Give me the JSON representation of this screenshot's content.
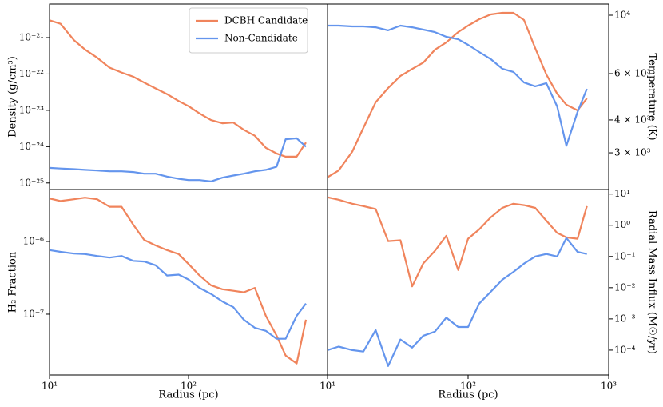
{
  "chart_data": [
    {
      "type": "line",
      "ylabel": "Density (g/cm³)",
      "xscale": "log",
      "yscale": "log",
      "yaxis": "left",
      "xlim": [
        10,
        1000
      ],
      "ylim": [
        6.6e-26,
        8.4e-21
      ],
      "yticks": [
        {
          "value": 1e-25,
          "label": "10⁻²⁵"
        },
        {
          "value": 1e-24,
          "label": "10⁻²⁴"
        },
        {
          "value": 1e-23,
          "label": "10⁻²³"
        },
        {
          "value": 1e-22,
          "label": "10⁻²²"
        },
        {
          "value": 1e-21,
          "label": "10⁻²¹"
        }
      ],
      "legend": "upper right",
      "x": [
        10,
        12,
        15,
        18,
        22,
        27,
        33,
        40,
        48,
        58,
        70,
        85,
        100,
        120,
        145,
        175,
        210,
        250,
        300,
        360,
        430,
        500,
        600,
        700
      ],
      "series": [
        {
          "name": "DCBH Candidate",
          "color": "#f0845c",
          "values": [
            3e-21,
            2.4e-21,
            8.5e-22,
            4.7e-22,
            2.8e-22,
            1.5e-22,
            1.1e-22,
            8.4e-23,
            5.8e-23,
            4e-23,
            2.8e-23,
            1.8e-23,
            1.3e-23,
            8.2e-24,
            5.4e-24,
            4.4e-24,
            4.6e-24,
            2.9e-24,
            2e-24,
            9.3e-25,
            6.5e-25,
            5.3e-25,
            5.3e-25,
            1.3e-24
          ]
        },
        {
          "name": "Non-Candidate",
          "color": "#6495ed",
          "values": [
            2.6e-25,
            2.5e-25,
            2.4e-25,
            2.3e-25,
            2.2e-25,
            2.1e-25,
            2.1e-25,
            2e-25,
            1.8e-25,
            1.8e-25,
            1.5e-25,
            1.3e-25,
            1.2e-25,
            1.2e-25,
            1.1e-25,
            1.4e-25,
            1.6e-25,
            1.8e-25,
            2.1e-25,
            2.3e-25,
            2.8e-25,
            1.6e-24,
            1.7e-24,
            1e-24
          ]
        }
      ]
    },
    {
      "type": "line",
      "ylabel": "Temperature (K)",
      "xscale": "log",
      "yscale": "log",
      "yaxis": "right",
      "xlim": [
        10,
        1000
      ],
      "ylim": [
        2175,
        11030
      ],
      "yticks": [
        {
          "value": 3000,
          "label": "3 × 10³"
        },
        {
          "value": 4000,
          "label": "4 × 10³"
        },
        {
          "value": 6000,
          "label": "6 × 10³"
        },
        {
          "value": 10000,
          "label": "10⁴"
        }
      ],
      "x": [
        10,
        12,
        15,
        18,
        22,
        27,
        33,
        40,
        48,
        58,
        70,
        85,
        100,
        120,
        145,
        175,
        210,
        250,
        300,
        360,
        430,
        500,
        600,
        700
      ],
      "series": [
        {
          "color": "#f0845c",
          "values": [
            2420,
            2570,
            3030,
            3730,
            4670,
            5290,
            5880,
            6250,
            6610,
            7390,
            7890,
            8630,
            9130,
            9660,
            10070,
            10210,
            10210,
            9590,
            7500,
            5960,
            5030,
            4570,
            4350,
            4830
          ]
        },
        {
          "color": "#6495ed",
          "values": [
            9130,
            9130,
            9070,
            9070,
            9000,
            8760,
            9130,
            9000,
            8820,
            8630,
            8280,
            8100,
            7720,
            7250,
            6810,
            6260,
            6090,
            5550,
            5370,
            5520,
            4500,
            3190,
            4290,
            5250
          ]
        }
      ]
    },
    {
      "type": "line",
      "ylabel": "H₂ Fraction",
      "xlabel": "Radius (pc)",
      "xscale": "log",
      "yscale": "log",
      "yaxis": "left",
      "xlim": [
        10,
        1000
      ],
      "ylim": [
        1.46e-08,
        5.18e-06
      ],
      "xticks": [
        {
          "value": 10,
          "label": "10¹"
        },
        {
          "value": 100,
          "label": "10²"
        }
      ],
      "yticks": [
        {
          "value": 1e-07,
          "label": "10⁻⁷"
        },
        {
          "value": 1e-06,
          "label": "10⁻⁶"
        }
      ],
      "x": [
        10,
        12,
        15,
        18,
        22,
        27,
        33,
        40,
        48,
        58,
        70,
        85,
        100,
        120,
        145,
        175,
        210,
        250,
        300,
        360,
        430,
        500,
        600,
        700
      ],
      "series": [
        {
          "color": "#f0845c",
          "values": [
            3.9e-06,
            3.6e-06,
            3.8e-06,
            4e-06,
            3.8e-06,
            3e-06,
            3e-06,
            1.7e-06,
            1.05e-06,
            8.8e-07,
            7.6e-07,
            6.7e-07,
            4.9e-07,
            3.4e-07,
            2.5e-07,
            2.2e-07,
            2.1e-07,
            2e-07,
            2.3e-07,
            9.5e-08,
            5.1e-08,
            2.7e-08,
            2.1e-08,
            8.4e-08
          ]
        },
        {
          "color": "#6495ed",
          "values": [
            7.6e-07,
            7.2e-07,
            6.8e-07,
            6.7e-07,
            6.3e-07,
            6e-07,
            6.3e-07,
            5.4e-07,
            5.3e-07,
            4.7e-07,
            3.4e-07,
            3.5e-07,
            3e-07,
            2.3e-07,
            1.9e-07,
            1.5e-07,
            1.25e-07,
            8.4e-08,
            6.5e-08,
            5.9e-08,
            4.6e-08,
            4.6e-08,
            9.5e-08,
            1.4e-07
          ]
        }
      ]
    },
    {
      "type": "line",
      "ylabel": "Radial Mass Influx (M☉/yr)",
      "xlabel": "Radius (pc)",
      "xscale": "log",
      "yscale": "log",
      "yaxis": "right",
      "xlim": [
        10,
        1000
      ],
      "ylim": [
        1.6e-05,
        14
      ],
      "xticks": [
        {
          "value": 10,
          "label": "10¹"
        },
        {
          "value": 100,
          "label": "10²"
        },
        {
          "value": 1000,
          "label": "10³"
        }
      ],
      "yticks": [
        {
          "value": 0.0001,
          "label": "10⁻⁴"
        },
        {
          "value": 0.001,
          "label": "10⁻³"
        },
        {
          "value": 0.01,
          "label": "10⁻²"
        },
        {
          "value": 0.1,
          "label": "10⁻¹"
        },
        {
          "value": 1,
          "label": "10⁰"
        },
        {
          "value": 10,
          "label": "10¹"
        }
      ],
      "x": [
        10,
        12,
        15,
        18,
        22,
        27,
        33,
        40,
        48,
        58,
        70,
        85,
        100,
        120,
        145,
        175,
        210,
        250,
        300,
        360,
        430,
        500,
        600,
        700
      ],
      "series": [
        {
          "color": "#f0845c",
          "values": [
            7.9,
            6.6,
            4.9,
            4.1,
            3.3,
            0.31,
            0.33,
            0.011,
            0.06,
            0.15,
            0.46,
            0.037,
            0.37,
            0.74,
            1.8,
            3.6,
            4.9,
            4.4,
            3.6,
            1.4,
            0.57,
            0.41,
            0.37,
            4.1
          ]
        },
        {
          "color": "#6495ed",
          "values": [
            0.0001,
            0.00013,
            0.0001,
            9e-05,
            0.00044,
            3.1e-05,
            0.00022,
            0.00012,
            0.00029,
            0.00039,
            0.0011,
            0.00055,
            0.00055,
            0.0031,
            0.0074,
            0.018,
            0.032,
            0.059,
            0.1,
            0.12,
            0.1,
            0.39,
            0.14,
            0.12
          ]
        }
      ]
    }
  ]
}
